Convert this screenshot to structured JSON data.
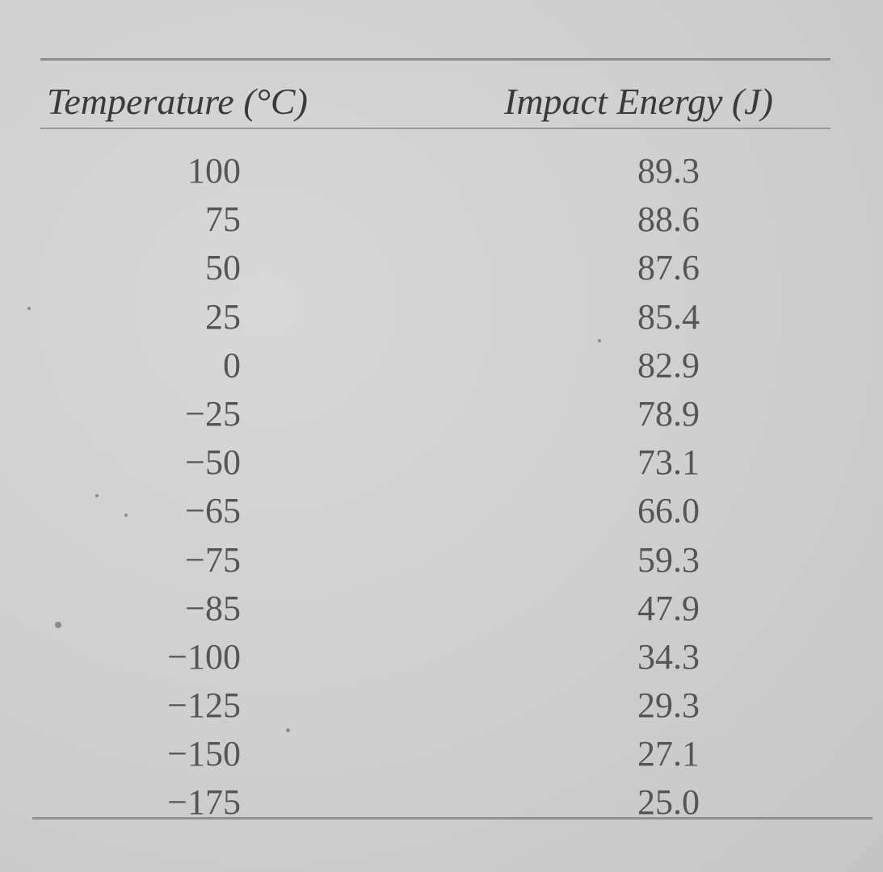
{
  "table": {
    "headers": {
      "temperature": "Temperature (°C)",
      "impact_energy": "Impact Energy (J)"
    },
    "rows": [
      {
        "temperature": "100",
        "impact_energy": "89.3"
      },
      {
        "temperature": "75",
        "impact_energy": "88.6"
      },
      {
        "temperature": "50",
        "impact_energy": "87.6"
      },
      {
        "temperature": "25",
        "impact_energy": "85.4"
      },
      {
        "temperature": "0",
        "impact_energy": "82.9"
      },
      {
        "temperature": "−25",
        "impact_energy": "78.9"
      },
      {
        "temperature": "−50",
        "impact_energy": "73.1"
      },
      {
        "temperature": "−65",
        "impact_energy": "66.0"
      },
      {
        "temperature": "−75",
        "impact_energy": "59.3"
      },
      {
        "temperature": "−85",
        "impact_energy": "47.9"
      },
      {
        "temperature": "−100",
        "impact_energy": "34.3"
      },
      {
        "temperature": "−125",
        "impact_energy": "29.3"
      },
      {
        "temperature": "−150",
        "impact_energy": "27.1"
      },
      {
        "temperature": "−175",
        "impact_energy": "25.0"
      }
    ]
  }
}
